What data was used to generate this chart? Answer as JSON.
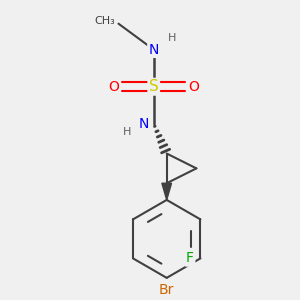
{
  "background_color": "#f0f0f0",
  "bond_color": "#404040",
  "atom_colors": {
    "S": "#cccc00",
    "N": "#0000ff",
    "O": "#ff0000",
    "F": "#00aa00",
    "Br": "#cc6600",
    "C": "#404040",
    "H": "#606060"
  },
  "figsize": [
    3.0,
    3.0
  ],
  "dpi": 100
}
